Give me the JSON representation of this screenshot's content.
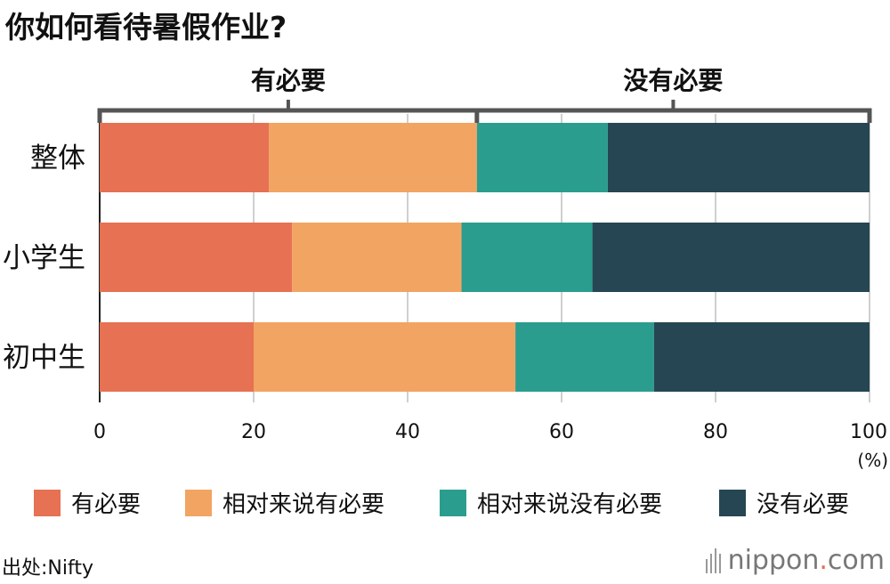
{
  "title": "你如何看待暑假作业?",
  "group_labels": {
    "left": "有必要",
    "right": "没有必要"
  },
  "source": "出处:Nifty",
  "brand": {
    "name": "nippon",
    "dot": ".",
    "tld": "com"
  },
  "legend": [
    {
      "label": "有必要",
      "color": "#e67153"
    },
    {
      "label": "相对来说有必要",
      "color": "#f2a462"
    },
    {
      "label": "相对来说没有必要",
      "color": "#2a9d8f"
    },
    {
      "label": "没有必要",
      "color": "#264653"
    }
  ],
  "chart_data": {
    "type": "bar",
    "orientation": "horizontal",
    "stacked": true,
    "categories": [
      "整体",
      "小学生",
      "初中生"
    ],
    "series": [
      {
        "name": "有必要",
        "color": "#e67153",
        "values": [
          22,
          25,
          20
        ]
      },
      {
        "name": "相对来说有必要",
        "color": "#f2a462",
        "values": [
          27,
          22,
          34
        ]
      },
      {
        "name": "相对来说没有必要",
        "color": "#2a9d8f",
        "values": [
          17,
          17,
          18
        ]
      },
      {
        "name": "没有必要",
        "color": "#264653",
        "values": [
          34,
          36,
          28
        ]
      }
    ],
    "x_ticks": [
      "0",
      "20",
      "40",
      "60",
      "80",
      "100"
    ],
    "x_unit": "(%)",
    "xlim": [
      0,
      100
    ],
    "grid": true
  }
}
